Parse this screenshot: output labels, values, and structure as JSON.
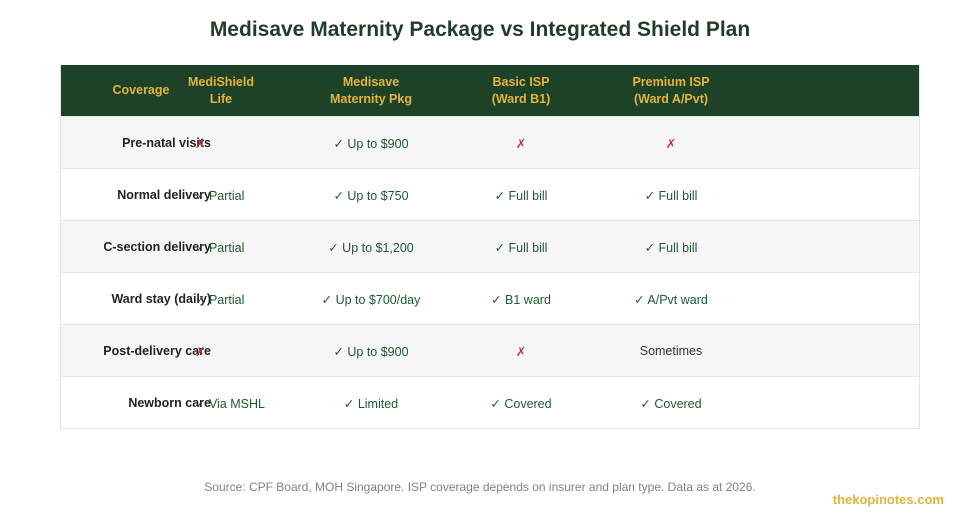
{
  "title": "Medisave Maternity Package vs Integrated Shield Plan",
  "headers": [
    "Coverage",
    "MediShield\nLife",
    "Medisave\nMaternity Pkg",
    "Basic ISP\n(Ward B1)",
    "Premium ISP\n(Ward A/Pvt)"
  ],
  "rows": [
    {
      "label": "Pre-natal visits",
      "cells": [
        "✗",
        "✓ Up to $900",
        "✗",
        "✗"
      ]
    },
    {
      "label": "Normal delivery",
      "cells": [
        "✓ Partial",
        "✓ Up to $750",
        "✓ Full bill",
        "✓ Full bill"
      ]
    },
    {
      "label": "C-section delivery",
      "cells": [
        "✓ Partial",
        "✓ Up to $1,200",
        "✓ Full bill",
        "✓ Full bill"
      ]
    },
    {
      "label": "Ward stay (daily)",
      "cells": [
        "✓ Partial",
        "✓ Up to $700/day",
        "✓ B1 ward",
        "✓ A/Pvt ward"
      ]
    },
    {
      "label": "Post-delivery care",
      "cells": [
        "✗",
        "✓ Up to $900",
        "✗",
        "Sometimes"
      ]
    },
    {
      "label": "Newborn care",
      "cells": [
        "✓ Via MSHL",
        "✓ Limited",
        "✓ Covered",
        "✓ Covered"
      ]
    }
  ],
  "source": "Source: CPF Board, MOH Singapore. ISP coverage depends on insurer and plan type. Data as at 2026.",
  "brand": "thekopinotes.com",
  "colors": {
    "header_bg": "#1e4228",
    "header_text": "#e3b43c",
    "check": "#1e5a30",
    "cross": "#c0392b"
  }
}
